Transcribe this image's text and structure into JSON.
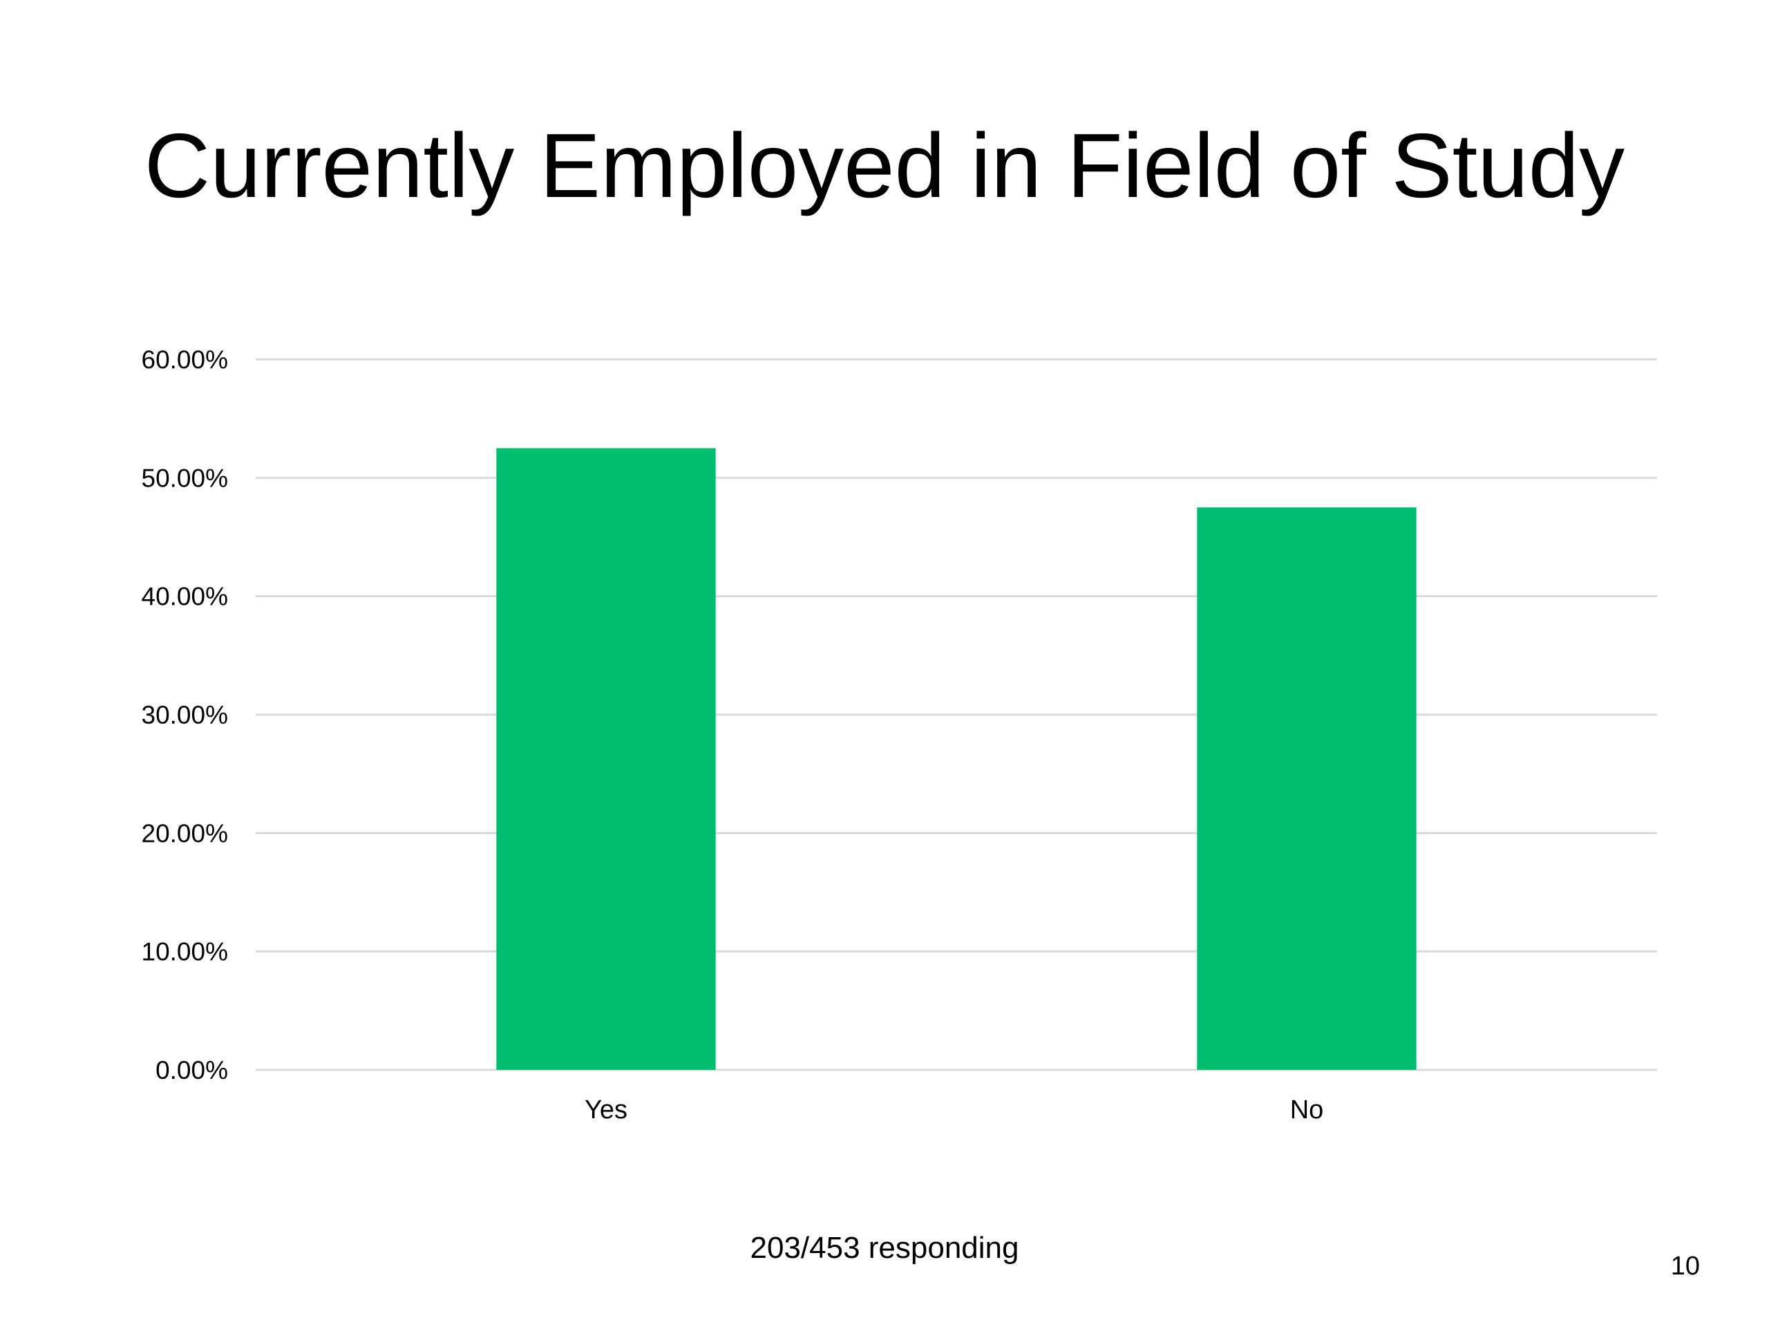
{
  "slide": {
    "title": "Currently Employed in Field of Study",
    "footnote": "203/453 responding",
    "page_number": "10"
  },
  "chart_data": {
    "type": "bar",
    "title": "",
    "xlabel": "",
    "ylabel": "",
    "categories": [
      "Yes",
      "No"
    ],
    "values": [
      52.5,
      47.5
    ],
    "unit": "%",
    "ylim": [
      0,
      60
    ],
    "yticks": [
      0,
      10,
      20,
      30,
      40,
      50,
      60
    ],
    "ytick_labels": [
      "0.00%",
      "10.00%",
      "20.00%",
      "30.00%",
      "40.00%",
      "50.00%",
      "60.00%"
    ],
    "grid": true,
    "legend": "none",
    "colors": {
      "bar": "#00BD6F",
      "grid": "#D9D9D9",
      "axis_text": "#000000"
    }
  }
}
